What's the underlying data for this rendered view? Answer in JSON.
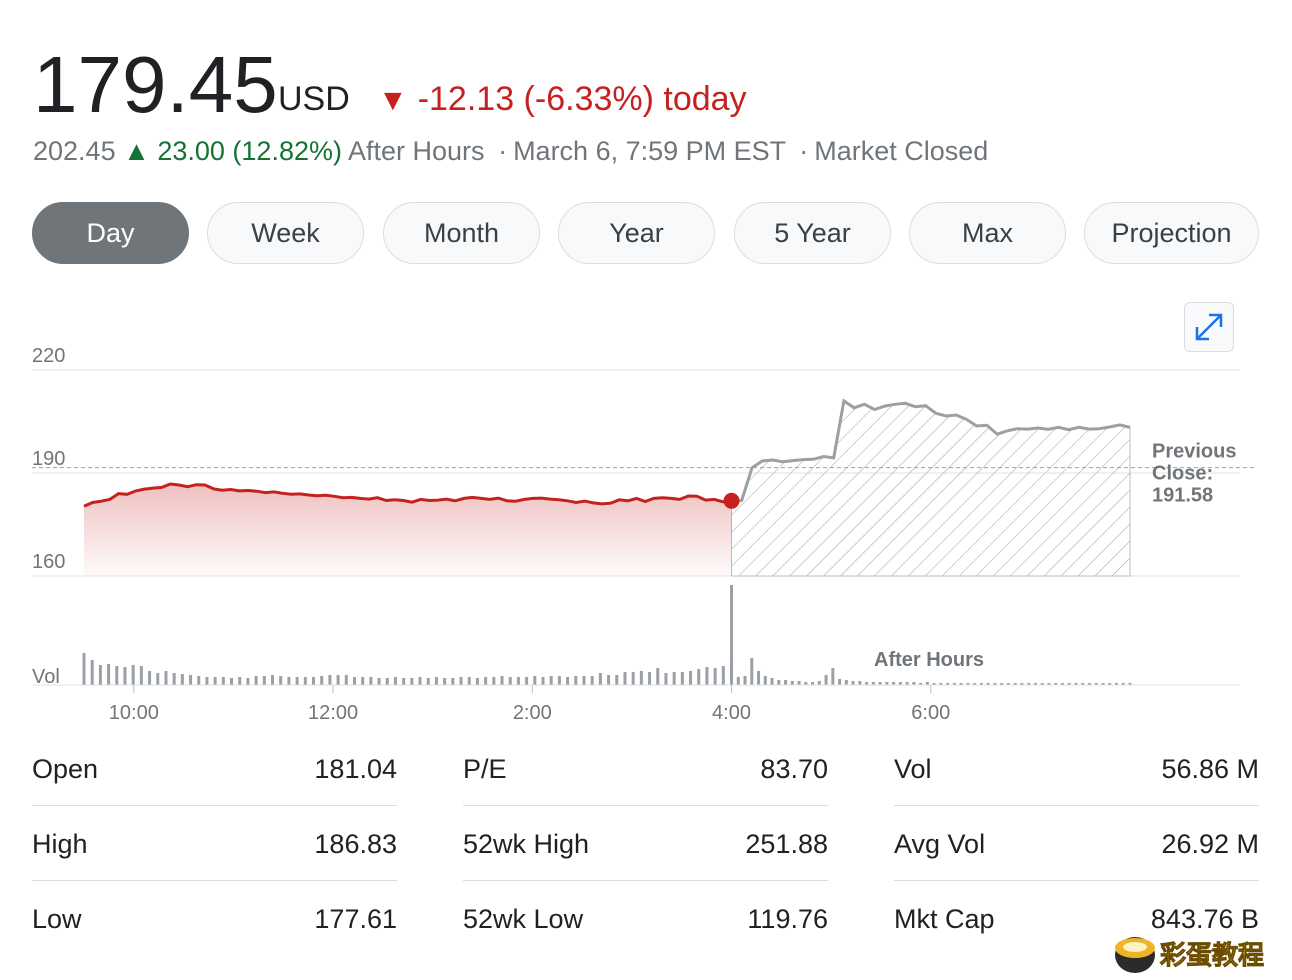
{
  "quote": {
    "price": "179.45",
    "currency": "USD",
    "change": "-12.13 (-6.33%) today",
    "direction_symbol": "▼"
  },
  "after_hours": {
    "price": "202.45",
    "direction_symbol": "▲",
    "change": "23.00 (12.82%)",
    "label": "After Hours",
    "sep1": "·",
    "timestamp": "March 6, 7:59 PM EST",
    "sep2": "·",
    "status": "Market Closed"
  },
  "tabs": [
    {
      "label": "Day",
      "active": true
    },
    {
      "label": "Week",
      "active": false
    },
    {
      "label": "Month",
      "active": false
    },
    {
      "label": "Year",
      "active": false
    },
    {
      "label": "5 Year",
      "active": false
    },
    {
      "label": "Max",
      "active": false
    },
    {
      "label": "Projection",
      "active": false
    }
  ],
  "expand_icon": "expand-diagonal-icon",
  "colors": {
    "down": "#c5221f",
    "up": "#137333",
    "after_hours_line": "#9aa0a6",
    "active_tab": "#70757a"
  },
  "chart_data": {
    "type": "line",
    "y_ticks": [
      "220",
      "190",
      "160"
    ],
    "ylim": [
      160,
      220
    ],
    "x_ticks": [
      "10:00",
      "12:00",
      "2:00",
      "4:00",
      "6:00"
    ],
    "vol_label": "Vol",
    "after_hours_label": "After Hours",
    "previous_close_label": "Previous Close:",
    "previous_close": "191.58",
    "previous_close_value": 191.58,
    "regular_session": {
      "start_minutes": 570,
      "values": [
        180.3,
        181.4,
        181.8,
        182.3,
        184.0,
        183.8,
        184.8,
        185.3,
        185.6,
        185.8,
        186.8,
        186.5,
        186.0,
        186.6,
        186.5,
        185.4,
        185.0,
        185.2,
        184.8,
        184.9,
        184.7,
        184.3,
        184.5,
        184.1,
        183.8,
        183.9,
        183.6,
        183.4,
        183.5,
        183.2,
        182.8,
        182.9,
        182.6,
        182.4,
        182.8,
        182.0,
        182.2,
        182.0,
        181.5,
        182.3,
        182.0,
        182.1,
        182.4,
        181.9,
        182.6,
        182.9,
        182.6,
        182.3,
        182.7,
        181.9,
        181.8,
        182.3,
        182.6,
        182.7,
        182.4,
        182.2,
        181.9,
        181.4,
        181.8,
        181.3,
        181.0,
        181.2,
        182.2,
        181.9,
        182.6,
        181.7,
        182.6,
        182.8,
        182.6,
        182.3,
        183.3,
        183.2,
        182.1,
        182.3,
        181.6,
        181.9
      ],
      "last_point_value": 181.9
    },
    "after_hours_session": {
      "start_minutes": 960,
      "values": [
        181.9,
        182.0,
        191.5,
        193.5,
        193.8,
        193.3,
        193.6,
        193.9,
        194.0,
        194.8,
        194.4,
        211.0,
        209.0,
        210.0,
        208.5,
        209.5,
        210.0,
        210.3,
        209.3,
        209.6,
        207.4,
        206.6,
        206.9,
        205.6,
        203.7,
        203.9,
        201.3,
        202.3,
        202.9,
        202.8,
        203.1,
        202.7,
        203.3,
        202.6,
        203.3,
        202.8,
        202.9,
        203.4,
        204.0,
        203.3
      ],
      "end_minutes": 1200
    },
    "volume": {
      "regular": [
        0.32,
        0.25,
        0.2,
        0.21,
        0.19,
        0.18,
        0.2,
        0.19,
        0.14,
        0.12,
        0.14,
        0.12,
        0.11,
        0.1,
        0.09,
        0.08,
        0.08,
        0.08,
        0.07,
        0.08,
        0.07,
        0.09,
        0.09,
        0.1,
        0.09,
        0.08,
        0.08,
        0.08,
        0.08,
        0.09,
        0.1,
        0.1,
        0.1,
        0.08,
        0.08,
        0.08,
        0.07,
        0.07,
        0.08,
        0.07,
        0.07,
        0.08,
        0.07,
        0.08,
        0.07,
        0.07,
        0.08,
        0.08,
        0.07,
        0.08,
        0.08,
        0.09,
        0.08,
        0.08,
        0.08,
        0.09,
        0.08,
        0.09,
        0.09,
        0.08,
        0.09,
        0.09,
        0.09,
        0.12,
        0.1,
        0.1,
        0.13,
        0.13,
        0.14,
        0.13,
        0.17,
        0.12,
        0.13,
        0.13,
        0.14,
        0.16,
        0.18,
        0.17,
        0.19,
        1.0
      ],
      "after_hours": [
        0.22,
        0.08,
        0.09,
        0.27,
        0.14,
        0.09,
        0.07,
        0.05,
        0.05,
        0.04,
        0.04,
        0.03,
        0.03,
        0.04,
        0.1,
        0.17,
        0.06,
        0.05,
        0.04,
        0.04,
        0.03,
        0.03,
        0.03,
        0.03,
        0.03,
        0.03,
        0.03,
        0.03,
        0.02,
        0.03,
        0.02,
        0.02,
        0.02,
        0.02,
        0.02,
        0.02,
        0.02,
        0.02,
        0.02,
        0.02,
        0.02,
        0.02,
        0.02,
        0.02,
        0.02,
        0.02,
        0.02,
        0.02,
        0.02,
        0.02,
        0.02,
        0.02,
        0.02,
        0.02,
        0.02,
        0.02,
        0.02,
        0.02,
        0.02,
        0.02
      ]
    }
  },
  "stats": {
    "col1": [
      {
        "label": "Open",
        "value": "181.04"
      },
      {
        "label": "High",
        "value": "186.83"
      },
      {
        "label": "Low",
        "value": "177.61"
      }
    ],
    "col2": [
      {
        "label": "P/E",
        "value": "83.70"
      },
      {
        "label": "52wk High",
        "value": "251.88"
      },
      {
        "label": "52wk Low",
        "value": "119.76"
      }
    ],
    "col3": [
      {
        "label": "Vol",
        "value": "56.86 M"
      },
      {
        "label": "Avg Vol",
        "value": "26.92 M"
      },
      {
        "label": "Mkt Cap",
        "value": "843.76 B"
      }
    ]
  },
  "watermark": {
    "text": "彩蛋教程"
  }
}
